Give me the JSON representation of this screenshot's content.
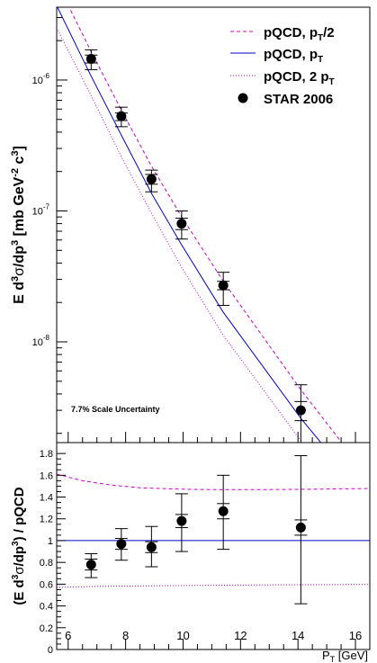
{
  "chart_data": [
    {
      "type": "line",
      "panel": "top",
      "ylabel": {
        "main": "E d",
        "sup1": "3",
        "sigma": "σ",
        "mid": "/dp",
        "sup2": "3",
        "units": " [mb GeV",
        "sup3": "-2",
        "c": " c",
        "sup4": "3",
        "close": "]"
      },
      "yscale": "log",
      "xlim": [
        5.6,
        16.5
      ],
      "ylim": [
        1.7e-09,
        3.6e-06
      ],
      "y_ticks": [
        {
          "value": 1e-06,
          "label": "10",
          "exp": "-6"
        },
        {
          "value": 1e-07,
          "label": "10",
          "exp": "-7"
        },
        {
          "value": 1e-08,
          "label": "10",
          "exp": "-8"
        }
      ],
      "legend_position": "top-right",
      "legend": [
        {
          "base": "pQCD, p",
          "sub": "T",
          "tail": "/2",
          "style": "dashed",
          "color": "#cc00cc"
        },
        {
          "base": "pQCD, p",
          "sub": "T",
          "tail": "",
          "style": "solid",
          "color": "#0000cc"
        },
        {
          "base": "pQCD, 2 p",
          "sub": "T",
          "tail": "",
          "style": "dotted",
          "color": "#cc00cc"
        },
        {
          "base": "STAR 2006",
          "sub": "",
          "tail": "",
          "style": "marker",
          "color": "#000000"
        }
      ],
      "annotation": "7.7% Scale Uncertainty",
      "series": [
        {
          "name": "pQCD, pT/2",
          "style": "dashed",
          "color": "#cc00cc",
          "x": [
            5.6,
            6.8,
            7.85,
            8.9,
            9.95,
            11.4,
            14.1,
            16.5
          ],
          "y": [
            5.6e-06,
            1.65e-06,
            5.9e-07,
            2.2e-07,
            9e-08,
            2.9e-08,
            4.3e-09,
            9e-10
          ]
        },
        {
          "name": "pQCD, pT",
          "style": "solid",
          "color": "#0000cc",
          "x": [
            5.6,
            6.8,
            7.85,
            8.9,
            9.95,
            11.4,
            14.1,
            16.5
          ],
          "y": [
            3.7e-06,
            1.07e-06,
            3.8e-07,
            1.36e-07,
            5.5e-08,
            1.68e-08,
            2.6e-09,
            6e-10
          ]
        },
        {
          "name": "pQCD, 2 pT",
          "style": "dotted",
          "color": "#cc00cc",
          "x": [
            5.6,
            6.8,
            7.85,
            8.9,
            9.95,
            11.4,
            14.1,
            16.5
          ],
          "y": [
            2.5e-06,
            7.6e-07,
            2.6e-07,
            9.6e-08,
            3.7e-08,
            1.12e-08,
            1.75e-09,
            4e-10
          ]
        },
        {
          "name": "STAR 2006",
          "style": "marker",
          "color": "#000000",
          "x": [
            6.8,
            7.85,
            8.9,
            9.95,
            11.4,
            14.1
          ],
          "y": [
            1.45e-06,
            5.3e-07,
            1.75e-07,
            8e-08,
            2.7e-08,
            3e-09
          ],
          "y_err_low": [
            1.2e-06,
            4.4e-07,
            1.4e-07,
            6.1e-08,
            1.9e-08,
            1.7e-09
          ],
          "y_err_high": [
            1.7e-06,
            6.2e-07,
            2.05e-07,
            1e-07,
            3.4e-08,
            4.7e-09
          ],
          "y_stat_low": [
            1.35e-06,
            4.9e-07,
            1.6e-07,
            7.2e-08,
            2.5e-08,
            2.5e-09
          ],
          "y_stat_high": [
            1.55e-06,
            5.6e-07,
            1.9e-07,
            8.8e-08,
            2.9e-08,
            3.5e-09
          ]
        }
      ]
    },
    {
      "type": "line",
      "panel": "bottom",
      "ylabel": {
        "open": "(E d",
        "sup1": "3",
        "sigma": "σ",
        "mid": "/dp",
        "sup2": "3",
        "close": ") / pQCD"
      },
      "xlabel": {
        "p": "P",
        "sub": "T",
        "units": " [GeV]"
      },
      "xlim": [
        5.6,
        16.5
      ],
      "ylim": [
        0,
        1.9
      ],
      "x_ticks": [
        "6",
        "8",
        "10",
        "12",
        "14",
        "16"
      ],
      "y_ticks": [
        "0",
        "0.2",
        "0.4",
        "0.6",
        "0.8",
        "1",
        "1.2",
        "1.4",
        "1.6",
        "1.8"
      ],
      "series": [
        {
          "name": "pQCD, pT/2",
          "style": "dashed",
          "color": "#cc00cc",
          "x": [
            5.6,
            6.5,
            7.5,
            8.5,
            9.5,
            10.5,
            11.5,
            12.5,
            13.5,
            14.5,
            15.5,
            16.5
          ],
          "y": [
            1.61,
            1.55,
            1.51,
            1.485,
            1.475,
            1.47,
            1.468,
            1.468,
            1.47,
            1.472,
            1.475,
            1.478
          ]
        },
        {
          "name": "pQCD, pT",
          "style": "solid",
          "color": "#0000cc",
          "x": [
            5.6,
            16.5
          ],
          "y": [
            1.0,
            1.0
          ]
        },
        {
          "name": "pQCD, 2 pT",
          "style": "dotted",
          "color": "#cc00cc",
          "x": [
            5.6,
            7.0,
            9.0,
            11.0,
            13.0,
            15.0,
            16.5
          ],
          "y": [
            0.57,
            0.58,
            0.585,
            0.59,
            0.593,
            0.596,
            0.598
          ]
        },
        {
          "name": "STAR 2006",
          "style": "marker",
          "color": "#000000",
          "x": [
            6.8,
            7.85,
            8.9,
            9.95,
            11.4,
            14.1
          ],
          "y": [
            0.78,
            0.97,
            0.94,
            1.18,
            1.27,
            1.12
          ],
          "y_err_low": [
            0.66,
            0.82,
            0.76,
            0.9,
            0.92,
            0.42
          ],
          "y_err_high": [
            0.88,
            1.11,
            1.13,
            1.43,
            1.6,
            1.78
          ],
          "y_stat_low": [
            0.73,
            0.92,
            0.89,
            1.12,
            1.2,
            1.05
          ],
          "y_stat_high": [
            0.83,
            1.02,
            0.99,
            1.24,
            1.34,
            1.19
          ]
        }
      ]
    }
  ]
}
